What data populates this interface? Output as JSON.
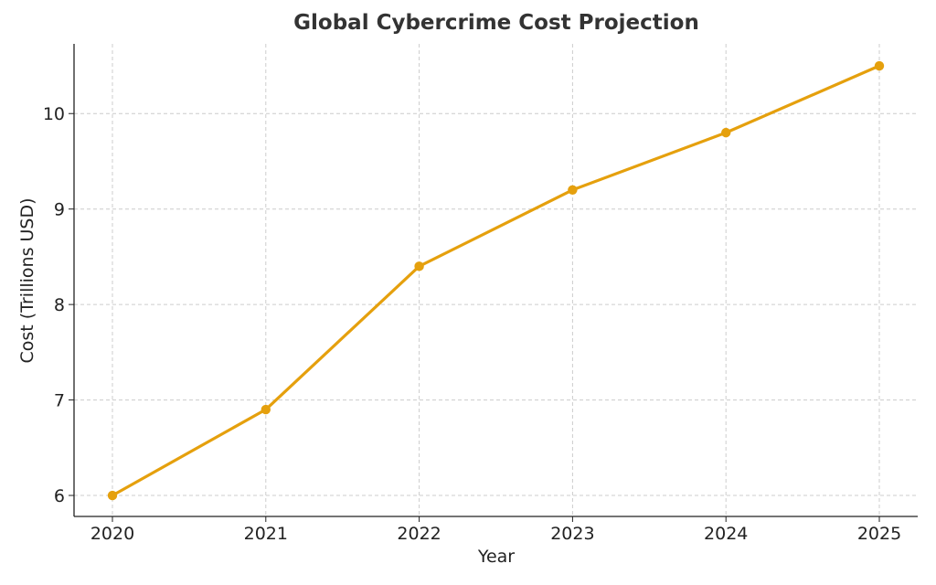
{
  "chart_data": {
    "type": "line",
    "title": "Global Cybercrime Cost Projection",
    "xlabel": "Year",
    "ylabel": "Cost (Trillions USD)",
    "x": [
      "2020",
      "2021",
      "2022",
      "2023",
      "2024",
      "2025"
    ],
    "series": [
      {
        "values": [
          6.0,
          6.9,
          8.4,
          9.2,
          9.8,
          10.5
        ],
        "color": "#e5a00d",
        "marker": "circle"
      }
    ],
    "yticks": [
      "6",
      "7",
      "8",
      "9",
      "10"
    ],
    "ylim": [
      5.78,
      10.73
    ],
    "grid": true,
    "grid_style": "dashed",
    "legend": false
  }
}
